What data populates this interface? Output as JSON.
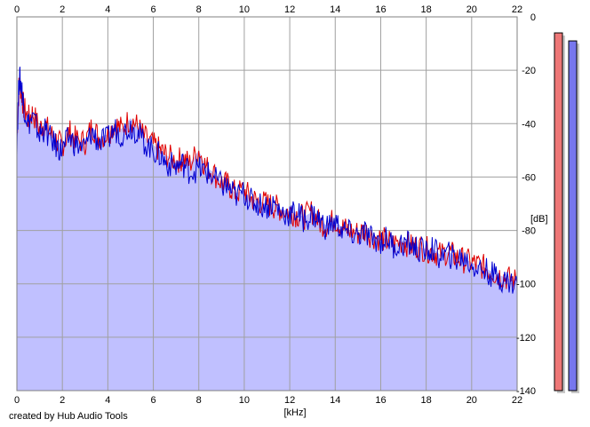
{
  "chart_data": {
    "type": "area",
    "title": "",
    "xlabel": "[kHz]",
    "ylabel": "[dB]",
    "xlim": [
      0,
      22
    ],
    "ylim": [
      -140,
      0
    ],
    "x_ticks": [
      "0",
      "2",
      "4",
      "6",
      "8",
      "10",
      "12",
      "14",
      "16",
      "18",
      "20",
      "22"
    ],
    "y_ticks": [
      "0",
      "-20",
      "-40",
      "-60",
      "-80",
      "-100",
      "-120",
      "-140"
    ],
    "grid": true,
    "fill_color": "#c0c0ff",
    "series": [
      {
        "color": "#e00000",
        "x": [
          0,
          0.1,
          0.2,
          0.3,
          0.5,
          0.7,
          1.0,
          1.2,
          1.5,
          1.8,
          2.0,
          2.3,
          2.6,
          3.0,
          3.3,
          3.6,
          4.0,
          4.3,
          4.6,
          5.0,
          5.3,
          5.6,
          6.0,
          6.3,
          6.6,
          7.0,
          7.3,
          7.6,
          8.0,
          8.3,
          8.6,
          9.0,
          9.3,
          9.6,
          10.0,
          10.3,
          10.6,
          11.0,
          11.3,
          11.6,
          12.0,
          12.3,
          12.6,
          13.0,
          13.3,
          13.6,
          14.0,
          14.3,
          14.6,
          15.0,
          15.3,
          15.6,
          16.0,
          16.3,
          16.6,
          17.0,
          17.3,
          17.6,
          18.0,
          18.3,
          18.6,
          19.0,
          19.3,
          19.6,
          20.0,
          20.3,
          20.6,
          21.0,
          21.3,
          21.6,
          22.0
        ],
        "y": [
          -45,
          -24,
          -28,
          -34,
          -38,
          -36,
          -42,
          -40,
          -44,
          -47,
          -48,
          -43,
          -46,
          -47,
          -41,
          -45,
          -44,
          -40,
          -42,
          -38,
          -41,
          -45,
          -48,
          -50,
          -52,
          -54,
          -53,
          -55,
          -50,
          -56,
          -58,
          -62,
          -63,
          -66,
          -65,
          -68,
          -69,
          -70,
          -71,
          -72,
          -73,
          -74,
          -75,
          -73,
          -77,
          -78,
          -76,
          -79,
          -80,
          -81,
          -80,
          -82,
          -83,
          -84,
          -85,
          -84,
          -86,
          -86,
          -87,
          -88,
          -89,
          -88,
          -90,
          -91,
          -92,
          -93,
          -94,
          -96,
          -97,
          -98,
          -99
        ]
      },
      {
        "color": "#0000d0",
        "x": [
          0,
          0.1,
          0.2,
          0.3,
          0.5,
          0.7,
          1.0,
          1.2,
          1.5,
          1.8,
          2.0,
          2.3,
          2.6,
          3.0,
          3.3,
          3.6,
          4.0,
          4.3,
          4.6,
          5.0,
          5.3,
          5.6,
          6.0,
          6.3,
          6.6,
          7.0,
          7.3,
          7.6,
          8.0,
          8.3,
          8.6,
          9.0,
          9.3,
          9.6,
          10.0,
          10.3,
          10.6,
          11.0,
          11.3,
          11.6,
          12.0,
          12.3,
          12.6,
          13.0,
          13.3,
          13.6,
          14.0,
          14.3,
          14.6,
          15.0,
          15.3,
          15.6,
          16.0,
          16.3,
          16.6,
          17.0,
          17.3,
          17.6,
          18.0,
          18.3,
          18.6,
          19.0,
          19.3,
          19.6,
          20.0,
          20.3,
          20.6,
          21.0,
          21.3,
          21.6,
          22.0
        ],
        "y": [
          -47,
          -22,
          -26,
          -33,
          -40,
          -38,
          -44,
          -42,
          -46,
          -49,
          -50,
          -45,
          -48,
          -49,
          -43,
          -47,
          -46,
          -42,
          -44,
          -41,
          -43,
          -47,
          -50,
          -52,
          -55,
          -56,
          -55,
          -58,
          -57,
          -58,
          -60,
          -63,
          -64,
          -67,
          -66,
          -69,
          -70,
          -71,
          -70,
          -73,
          -74,
          -73,
          -76,
          -74,
          -76,
          -79,
          -77,
          -80,
          -81,
          -82,
          -81,
          -83,
          -84,
          -83,
          -86,
          -85,
          -85,
          -87,
          -88,
          -87,
          -90,
          -89,
          -91,
          -90,
          -93,
          -94,
          -95,
          -97,
          -98,
          -99,
          -100
        ]
      }
    ]
  },
  "level_meters": [
    {
      "color": "#ee7777",
      "level_db": -6
    },
    {
      "color": "#7777ee",
      "level_db": -9
    }
  ],
  "footer": {
    "credit": "created by Hub Audio Tools"
  }
}
